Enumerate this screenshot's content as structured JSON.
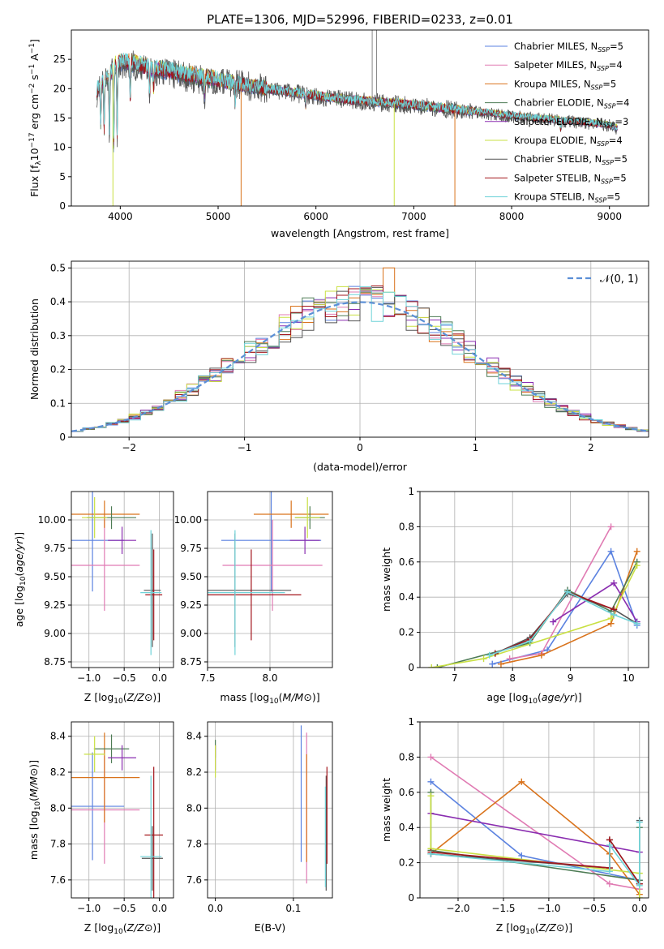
{
  "figure_title": "PLATE=1306, MJD=52996, FIBERID=0233, z=0.01",
  "colors": {
    "Chabrier MILES": "#5b82e0",
    "Salpeter MILES": "#e07bb3",
    "Kroupa MILES": "#d9731c",
    "Chabrier ELODIE": "#4e7c55",
    "Salpeter ELODIE": "#8a2db0",
    "Kroupa ELODIE": "#c9e043",
    "Chabrier STELIB": "#555555",
    "Salpeter STELIB": "#a3161c",
    "Kroupa STELIB": "#6fd3d8"
  },
  "chart_data": [
    {
      "id": "spectrum",
      "type": "line",
      "title": "PLATE=1306, MJD=52996, FIBERID=0233, z=0.01",
      "xlabel": "wavelength [Angstrom, rest frame]",
      "ylabel": "Flux [f$_\\lambda$10$^{-17}$ erg cm$^{-2}$ s$^{-1}$ A$^{-1}$]",
      "ylabel_parts": [
        "Flux [f",
        "λ",
        "10",
        "−17",
        " erg cm",
        "−2",
        " s",
        "−1",
        " A",
        "−1",
        "]"
      ],
      "xlim": [
        3500,
        9400
      ],
      "ylim": [
        0,
        30
      ],
      "xticks": [
        4000,
        5000,
        6000,
        7000,
        8000,
        9000
      ],
      "yticks": [
        0,
        5,
        10,
        15,
        20,
        25
      ],
      "legend_loc": "upper right",
      "legend": [
        {
          "label": "Chabrier MILES",
          "nssp": "5"
        },
        {
          "label": "Salpeter MILES",
          "nssp": "4"
        },
        {
          "label": "Kroupa MILES",
          "nssp": "5"
        },
        {
          "label": "Chabrier ELODIE",
          "nssp": "4"
        },
        {
          "label": "Salpeter ELODIE",
          "nssp": "3"
        },
        {
          "label": "Kroupa ELODIE",
          "nssp": "4"
        },
        {
          "label": "Chabrier STELIB",
          "nssp": "5"
        },
        {
          "label": "Salpeter STELIB",
          "nssp": "5"
        },
        {
          "label": "Kroupa STELIB",
          "nssp": "5"
        }
      ],
      "continuum": {
        "x": [
          3750,
          3850,
          3950,
          4000,
          4100,
          4300,
          4500,
          4800,
          5000,
          5200,
          5500,
          5800,
          6000,
          6300,
          6600,
          7000,
          7400,
          7800,
          8000,
          8300,
          8600,
          8800,
          9000,
          9080
        ],
        "y": [
          19.5,
          21.5,
          24.0,
          24.5,
          24.5,
          23.5,
          23.0,
          22.0,
          21.5,
          20.8,
          20.0,
          19.3,
          18.8,
          18.2,
          17.8,
          17.2,
          16.5,
          15.8,
          15.4,
          14.9,
          14.5,
          14.2,
          13.8,
          13.3
        ]
      },
      "absorption_features": [
        {
          "x": 3800,
          "depth": 6.0
        },
        {
          "x": 3835,
          "depth": 8.5
        },
        {
          "x": 3889,
          "depth": 10.0
        },
        {
          "x": 3933,
          "depth": 14.0
        },
        {
          "x": 3968,
          "depth": 12.0
        },
        {
          "x": 4102,
          "depth": 6.0
        },
        {
          "x": 4300,
          "depth": 5.0
        },
        {
          "x": 4340,
          "depth": 3.5
        },
        {
          "x": 4861,
          "depth": 3.0
        },
        {
          "x": 5175,
          "depth": 3.0
        },
        {
          "x": 5895,
          "depth": 2.0
        },
        {
          "x": 8500,
          "depth": 1.5
        }
      ],
      "spikes": [
        {
          "x": 3925,
          "from": 24.0,
          "to": 0
        },
        {
          "x": 5235,
          "from": 21.0,
          "to": 0
        },
        {
          "x": 6575,
          "from": 18.0,
          "to": 30
        },
        {
          "x": 6620,
          "from": 18.0,
          "to": 30
        },
        {
          "x": 6800,
          "from": 17.5,
          "to": 0
        },
        {
          "x": 7420,
          "from": 16.5,
          "to": 0
        }
      ]
    },
    {
      "id": "residuals",
      "type": "histogram",
      "xlabel": "(data-model)/error",
      "ylabel": "Normed distribution",
      "xlim": [
        -2.5,
        2.5
      ],
      "ylim": [
        0,
        0.52
      ],
      "xticks": [
        -2,
        -1,
        0,
        1,
        2
      ],
      "xtick_labels": [
        "−2",
        "−1",
        "0",
        "1",
        "2"
      ],
      "yticks": [
        0.0,
        0.1,
        0.2,
        0.3,
        0.4,
        0.5
      ],
      "bin_width": 0.1,
      "reference_curve": {
        "label": "𝒩(0, 1)",
        "type": "gaussian",
        "mean": 0,
        "sigma": 1,
        "style": "dashed",
        "color": "#5b8fd6"
      },
      "legend_loc": "upper right",
      "bin_edges_start": -2.5,
      "series_offsets": {
        "Chabrier MILES": 0.01,
        "Salpeter MILES": -0.015,
        "Kroupa MILES": 0.02,
        "Chabrier ELODIE": -0.01,
        "Salpeter ELODIE": 0.025,
        "Kroupa ELODIE": -0.02,
        "Chabrier STELIB": 0.015,
        "Salpeter STELIB": -0.005,
        "Kroupa STELIB": 0.005
      }
    },
    {
      "id": "age_vs_Z",
      "type": "errorbar",
      "xlabel": "Z [log10(Z/Z⊙)]",
      "ylabel": "age [log10(age/yr)]",
      "xlim": [
        -1.25,
        0.2
      ],
      "ylim": [
        8.7,
        10.25
      ],
      "xticks": [
        -1.0,
        -0.5,
        0.0
      ],
      "xtick_labels": [
        "−1.0",
        "−0.5",
        "0.0"
      ],
      "yticks": [
        8.75,
        9.0,
        9.25,
        9.5,
        9.75,
        10.0
      ],
      "ytick_labels": [
        "8.75",
        "9.00",
        "9.25",
        "9.50",
        "9.75",
        "10.00"
      ],
      "points": [
        {
          "series": "Chabrier MILES",
          "x": -0.95,
          "xerr": 0.45,
          "y": 9.82,
          "yerr": 0.45
        },
        {
          "series": "Salpeter MILES",
          "x": -0.78,
          "xerr": 0.5,
          "y": 9.6,
          "yerr": 0.4
        },
        {
          "series": "Kroupa MILES",
          "x": -0.78,
          "xerr": 0.5,
          "y": 10.05,
          "yerr": 0.12
        },
        {
          "series": "Chabrier ELODIE",
          "x": -0.68,
          "xerr": 0.35,
          "y": 10.02,
          "yerr": 0.1
        },
        {
          "series": "Salpeter ELODIE",
          "x": -0.53,
          "xerr": 0.2,
          "y": 9.82,
          "yerr": 0.12
        },
        {
          "series": "Kroupa ELODIE",
          "x": -0.92,
          "xerr": 0.18,
          "y": 10.02,
          "yerr": 0.18
        },
        {
          "series": "Chabrier STELIB",
          "x": -0.1,
          "xerr": 0.12,
          "y": 9.38,
          "yerr": 0.5
        },
        {
          "series": "Salpeter STELIB",
          "x": -0.08,
          "xerr": 0.12,
          "y": 9.34,
          "yerr": 0.4
        },
        {
          "series": "Kroupa STELIB",
          "x": -0.12,
          "xerr": 0.15,
          "y": 9.36,
          "yerr": 0.55
        }
      ]
    },
    {
      "id": "age_vs_mass",
      "type": "errorbar",
      "xlabel": "mass [log10(M/M⊙)]",
      "ylabel": "",
      "xlim": [
        7.5,
        8.5
      ],
      "ylim": [
        8.7,
        10.25
      ],
      "xticks": [
        7.5,
        8.0
      ],
      "xtick_labels": [
        "7.5",
        "8.0"
      ],
      "yticks": [
        8.75,
        9.0,
        9.25,
        9.5,
        9.75,
        10.0
      ],
      "ytick_labels": [
        "8.75",
        "9.00",
        "9.25",
        "9.50",
        "9.75",
        "10.00"
      ],
      "points": [
        {
          "series": "Chabrier MILES",
          "x": 8.01,
          "xerr": 0.4,
          "y": 9.82,
          "yerr": 0.45
        },
        {
          "series": "Salpeter MILES",
          "x": 8.02,
          "xerr": 0.4,
          "y": 9.6,
          "yerr": 0.4
        },
        {
          "series": "Kroupa MILES",
          "x": 8.17,
          "xerr": 0.3,
          "y": 10.05,
          "yerr": 0.12
        },
        {
          "series": "Chabrier ELODIE",
          "x": 8.32,
          "xerr": 0.12,
          "y": 10.02,
          "yerr": 0.1
        },
        {
          "series": "Salpeter ELODIE",
          "x": 8.28,
          "xerr": 0.12,
          "y": 9.82,
          "yerr": 0.12
        },
        {
          "series": "Kroupa ELODIE",
          "x": 8.3,
          "xerr": 0.1,
          "y": 10.02,
          "yerr": 0.18
        },
        {
          "series": "Chabrier STELIB",
          "x": 7.72,
          "xerr": 0.45,
          "y": 9.38,
          "yerr": 0.5
        },
        {
          "series": "Salpeter STELIB",
          "x": 7.85,
          "xerr": 0.4,
          "y": 9.34,
          "yerr": 0.4
        },
        {
          "series": "Kroupa STELIB",
          "x": 7.72,
          "xerr": 0.4,
          "y": 9.36,
          "yerr": 0.55
        }
      ]
    },
    {
      "id": "weight_vs_age",
      "type": "line",
      "xlabel": "age [log10(age/yr)]",
      "ylabel": "mass weight",
      "xlim": [
        6.4,
        10.35
      ],
      "ylim": [
        0,
        1.0
      ],
      "xticks": [
        7,
        8,
        9,
        10
      ],
      "yticks": [
        0.0,
        0.2,
        0.4,
        0.6,
        0.8,
        1.0
      ],
      "series": [
        {
          "name": "Chabrier MILES",
          "x": [
            7.65,
            8.6,
            9.7,
            10.15
          ],
          "y": [
            0.02,
            0.1,
            0.66,
            0.24
          ]
        },
        {
          "name": "Salpeter MILES",
          "x": [
            7.95,
            8.5,
            9.7
          ],
          "y": [
            0.05,
            0.08,
            0.8
          ]
        },
        {
          "name": "Kroupa MILES",
          "x": [
            7.8,
            8.5,
            9.7,
            10.15
          ],
          "y": [
            0.02,
            0.07,
            0.25,
            0.66
          ]
        },
        {
          "name": "Chabrier ELODIE",
          "x": [
            6.7,
            8.3,
            8.95,
            9.7,
            10.15
          ],
          "y": [
            0.0,
            0.14,
            0.44,
            0.32,
            0.6
          ]
        },
        {
          "name": "Salpeter ELODIE",
          "x": [
            8.7,
            9.75,
            10.15
          ],
          "y": [
            0.26,
            0.48,
            0.26
          ]
        },
        {
          "name": "Kroupa ELODIE",
          "x": [
            6.6,
            7.5,
            9.7,
            10.15
          ],
          "y": [
            0.0,
            0.05,
            0.28,
            0.58
          ]
        },
        {
          "name": "Chabrier STELIB",
          "x": [
            7.7,
            8.3,
            8.95,
            9.75,
            10.15
          ],
          "y": [
            0.08,
            0.17,
            0.42,
            0.33,
            0.25
          ]
        },
        {
          "name": "Salpeter STELIB",
          "x": [
            7.7,
            8.3,
            8.95,
            9.75
          ],
          "y": [
            0.08,
            0.16,
            0.43,
            0.33
          ]
        },
        {
          "name": "Kroupa STELIB",
          "x": [
            7.6,
            8.3,
            8.95,
            9.75,
            10.15
          ],
          "y": [
            0.07,
            0.15,
            0.43,
            0.3,
            0.25
          ]
        }
      ]
    },
    {
      "id": "mass_vs_Z",
      "type": "errorbar",
      "xlabel": "Z [log10(Z/Z⊙)]",
      "ylabel": "mass [log10(M/M⊙)]",
      "xlim": [
        -1.25,
        0.2
      ],
      "ylim": [
        7.5,
        8.48
      ],
      "xticks": [
        -1.0,
        -0.5,
        0.0
      ],
      "xtick_labels": [
        "−1.0",
        "−0.5",
        "0.0"
      ],
      "yticks": [
        7.6,
        7.8,
        8.0,
        8.2,
        8.4
      ],
      "ytick_labels": [
        "7.6",
        "7.8",
        "8.0",
        "8.2",
        "8.4"
      ],
      "points": [
        {
          "series": "Chabrier MILES",
          "x": -0.95,
          "xerr": 0.45,
          "y": 8.01,
          "yerr": 0.3
        },
        {
          "series": "Salpeter MILES",
          "x": -0.78,
          "xerr": 0.5,
          "y": 7.99,
          "yerr": 0.3
        },
        {
          "series": "Kroupa MILES",
          "x": -0.78,
          "xerr": 0.5,
          "y": 8.17,
          "yerr": 0.25
        },
        {
          "series": "Chabrier ELODIE",
          "x": -0.68,
          "xerr": 0.25,
          "y": 8.33,
          "yerr": 0.08
        },
        {
          "series": "Salpeter ELODIE",
          "x": -0.53,
          "xerr": 0.2,
          "y": 8.28,
          "yerr": 0.07
        },
        {
          "series": "Kroupa ELODIE",
          "x": -0.92,
          "xerr": 0.15,
          "y": 8.3,
          "yerr": 0.1
        },
        {
          "series": "Chabrier STELIB",
          "x": -0.1,
          "xerr": 0.15,
          "y": 7.72,
          "yerr": 0.18
        },
        {
          "series": "Salpeter STELIB",
          "x": -0.08,
          "xerr": 0.13,
          "y": 7.85,
          "yerr": 0.38
        },
        {
          "series": "Kroupa STELIB",
          "x": -0.12,
          "xerr": 0.15,
          "y": 7.73,
          "yerr": 0.45
        }
      ]
    },
    {
      "id": "mass_vs_ebv",
      "type": "errorbar",
      "xlabel": "E(B-V)",
      "ylabel": "",
      "xlim": [
        -0.01,
        0.15
      ],
      "ylim": [
        7.5,
        8.48
      ],
      "xticks": [
        0.0,
        0.1
      ],
      "xtick_labels": [
        "0.0",
        "0.1"
      ],
      "yticks": [
        7.6,
        7.8,
        8.0,
        8.2,
        8.4
      ],
      "ytick_labels": [
        "7.6",
        "7.8",
        "8.0",
        "8.2",
        "8.4"
      ],
      "points": [
        {
          "series": "Chabrier MILES",
          "x": 0.11,
          "xerr": 0.0,
          "y": 8.08,
          "yerr": 0.38
        },
        {
          "series": "Salpeter MILES",
          "x": 0.117,
          "xerr": 0.0,
          "y": 8.0,
          "yerr": 0.42
        },
        {
          "series": "Kroupa MILES",
          "x": 0.117,
          "xerr": 0.0,
          "y": 8.0,
          "yerr": 0.3
        },
        {
          "series": "Chabrier ELODIE",
          "x": 0.0,
          "xerr": 0.0,
          "y": 8.33,
          "yerr": 0.05
        },
        {
          "series": "Salpeter ELODIE",
          "x": 0.0,
          "xerr": 0.0,
          "y": 8.28,
          "yerr": 0.07
        },
        {
          "series": "Kroupa ELODIE",
          "x": 0.0,
          "xerr": 0.0,
          "y": 8.26,
          "yerr": 0.09
        },
        {
          "series": "Chabrier STELIB",
          "x": 0.142,
          "xerr": 0.0,
          "y": 7.86,
          "yerr": 0.32
        },
        {
          "series": "Salpeter STELIB",
          "x": 0.143,
          "xerr": 0.0,
          "y": 7.96,
          "yerr": 0.27
        },
        {
          "series": "Kroupa STELIB",
          "x": 0.141,
          "xerr": 0.0,
          "y": 7.84,
          "yerr": 0.28
        }
      ]
    },
    {
      "id": "weight_vs_Z",
      "type": "line",
      "xlabel": "Z [log10(Z/Z⊙)]",
      "ylabel": "mass weight",
      "xlim": [
        -2.42,
        0.1
      ],
      "ylim": [
        0,
        1.0
      ],
      "xticks": [
        -2.0,
        -1.5,
        -1.0,
        -0.5,
        0.0
      ],
      "xtick_labels": [
        "−2.0",
        "−1.5",
        "−1.0",
        "−0.5",
        "0.0"
      ],
      "yticks": [
        0.0,
        0.2,
        0.4,
        0.6,
        0.8,
        1.0
      ],
      "series": [
        {
          "name": "Chabrier MILES",
          "x": [
            -2.3,
            -1.3,
            0.0
          ],
          "y": [
            0.66,
            0.24,
            0.1
          ]
        },
        {
          "name": "Salpeter MILES",
          "x": [
            -2.3,
            -0.33,
            0.0
          ],
          "y": [
            0.8,
            0.08,
            0.05
          ]
        },
        {
          "name": "Kroupa MILES",
          "x": [
            -2.3,
            -1.3,
            -0.33,
            0.0
          ],
          "y": [
            0.25,
            0.66,
            0.25,
            0.02
          ]
        },
        {
          "name": "Chabrier ELODIE",
          "x": [
            -2.3,
            -2.3,
            0.0,
            0.0
          ],
          "y": [
            0.6,
            0.27,
            0.1,
            0.4
          ]
        },
        {
          "name": "Salpeter ELODIE",
          "x": [
            -2.3,
            0.0
          ],
          "y": [
            0.48,
            0.26
          ]
        },
        {
          "name": "Kroupa ELODIE",
          "x": [
            -2.3,
            -2.3,
            0.0,
            0.0
          ],
          "y": [
            0.58,
            0.28,
            0.14,
            0.0
          ]
        },
        {
          "name": "Chabrier STELIB",
          "x": [
            -2.3,
            -0.33,
            -0.33,
            0.0,
            0.0
          ],
          "y": [
            0.25,
            0.17,
            0.33,
            0.08,
            0.44
          ]
        },
        {
          "name": "Salpeter STELIB",
          "x": [
            -2.3,
            -0.33,
            -0.33,
            0.0
          ],
          "y": [
            0.26,
            0.17,
            0.33,
            0.08
          ]
        },
        {
          "name": "Kroupa STELIB",
          "x": [
            -2.3,
            -0.33,
            -0.33,
            0.0,
            0.0
          ],
          "y": [
            0.25,
            0.15,
            0.3,
            0.07,
            0.43
          ]
        }
      ]
    }
  ]
}
